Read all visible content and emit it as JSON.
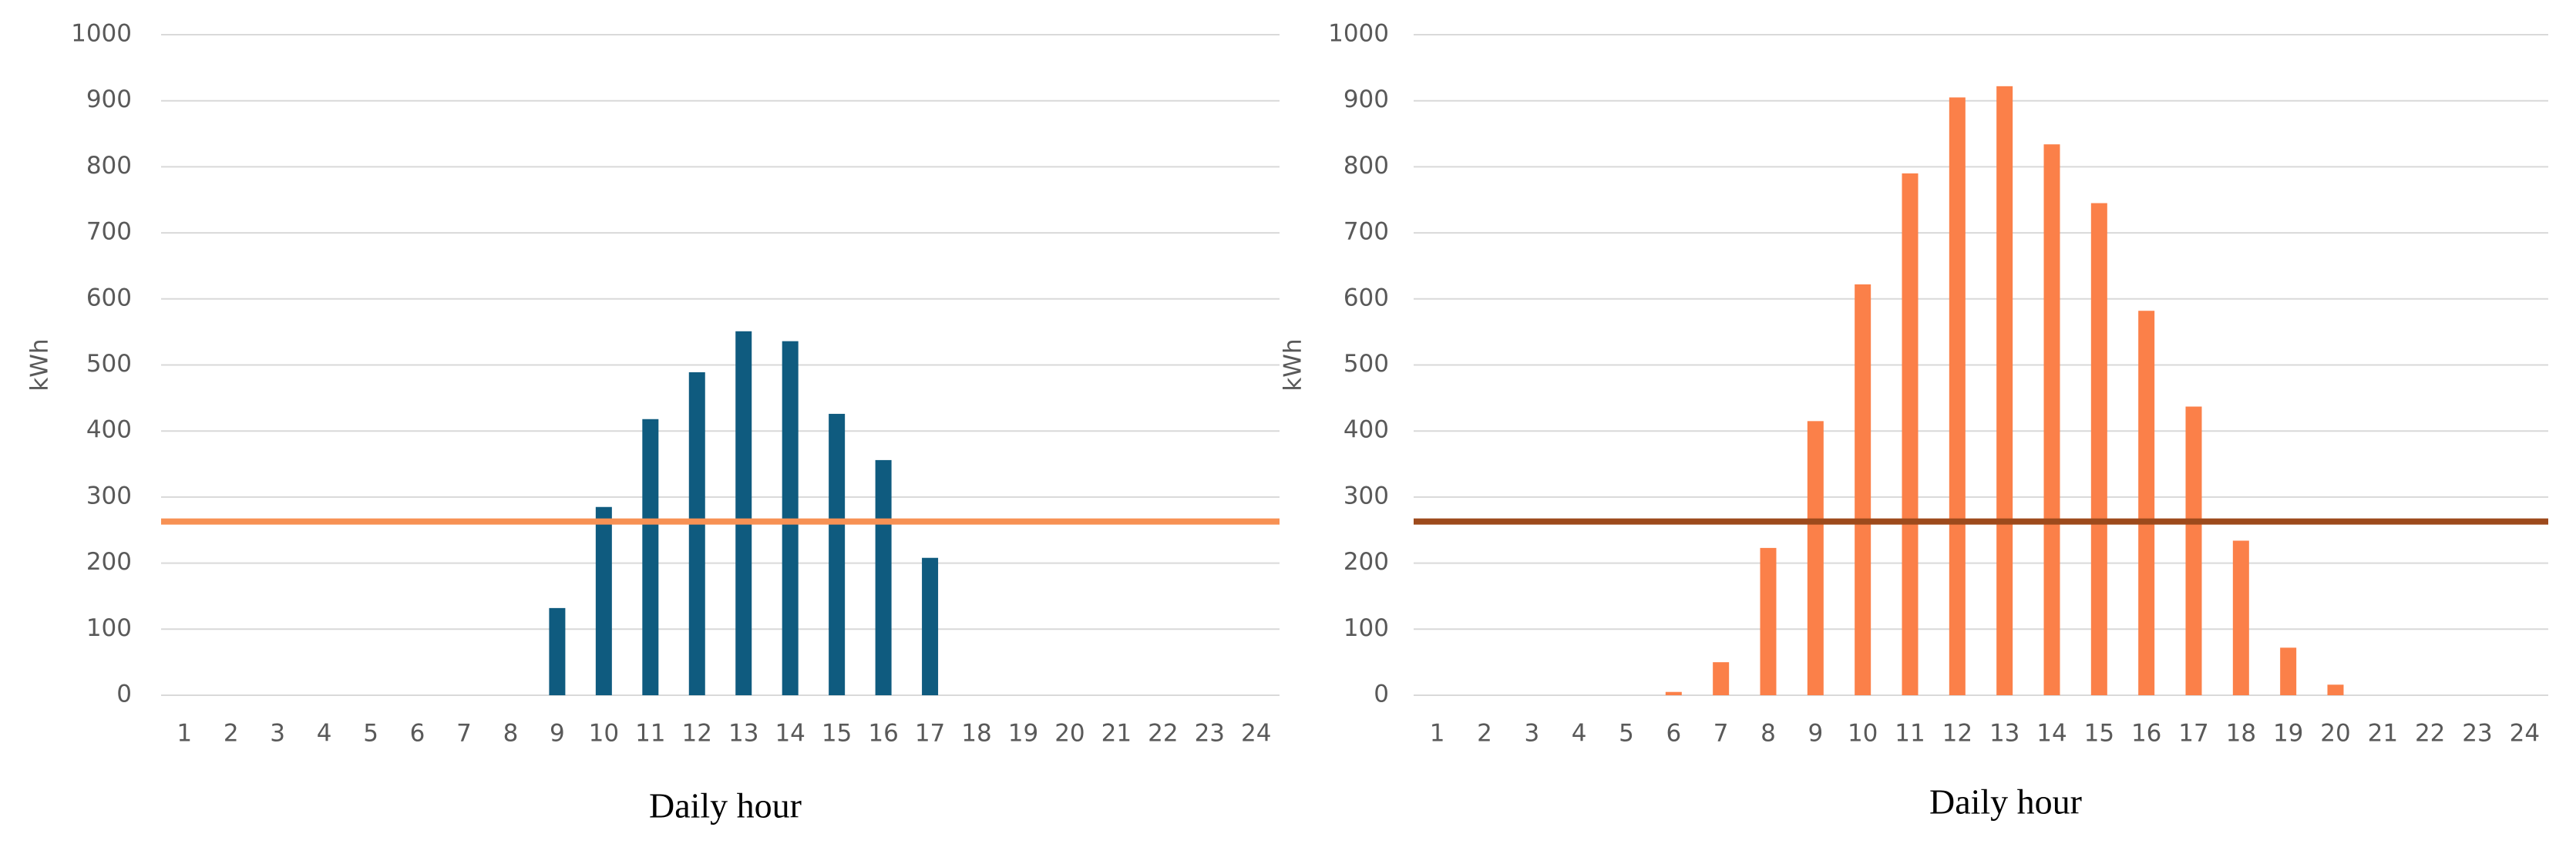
{
  "chart_data": [
    {
      "type": "bar",
      "y_label": "kWh",
      "x_label": "Daily hour",
      "categories": [
        "1",
        "2",
        "3",
        "4",
        "5",
        "6",
        "7",
        "8",
        "9",
        "10",
        "11",
        "12",
        "13",
        "14",
        "15",
        "16",
        "17",
        "18",
        "19",
        "20",
        "21",
        "22",
        "23",
        "24"
      ],
      "series": [
        {
          "color": "#0f5b7f",
          "values": [
            0,
            0,
            0,
            0,
            0,
            0,
            0,
            0,
            132,
            285,
            418,
            489,
            551,
            536,
            426,
            356,
            208,
            0,
            0,
            0,
            0,
            0,
            0,
            0
          ]
        }
      ],
      "reference_line": {
        "value": 263,
        "color": "#f79154"
      },
      "ylim": [
        0,
        1000
      ],
      "yticks": [
        0,
        100,
        200,
        300,
        400,
        500,
        600,
        700,
        800,
        900,
        1000
      ],
      "grid": true
    },
    {
      "type": "bar",
      "y_label": "kWh",
      "x_label": "Daily hour",
      "categories": [
        "1",
        "2",
        "3",
        "4",
        "5",
        "6",
        "7",
        "8",
        "9",
        "10",
        "11",
        "12",
        "13",
        "14",
        "15",
        "16",
        "17",
        "18",
        "19",
        "20",
        "21",
        "22",
        "23",
        "24"
      ],
      "series": [
        {
          "color": "#fb8049",
          "values": [
            0,
            0,
            0,
            0,
            0,
            5,
            50,
            223,
            415,
            622,
            790,
            905,
            922,
            834,
            745,
            582,
            437,
            234,
            72,
            16,
            0,
            0,
            0,
            0
          ]
        }
      ],
      "reference_line": {
        "value": 263,
        "color": "#9d4a1c"
      },
      "ylim": [
        0,
        1000
      ],
      "yticks": [
        0,
        100,
        200,
        300,
        400,
        500,
        600,
        700,
        800,
        900,
        1000
      ],
      "grid": true
    }
  ]
}
